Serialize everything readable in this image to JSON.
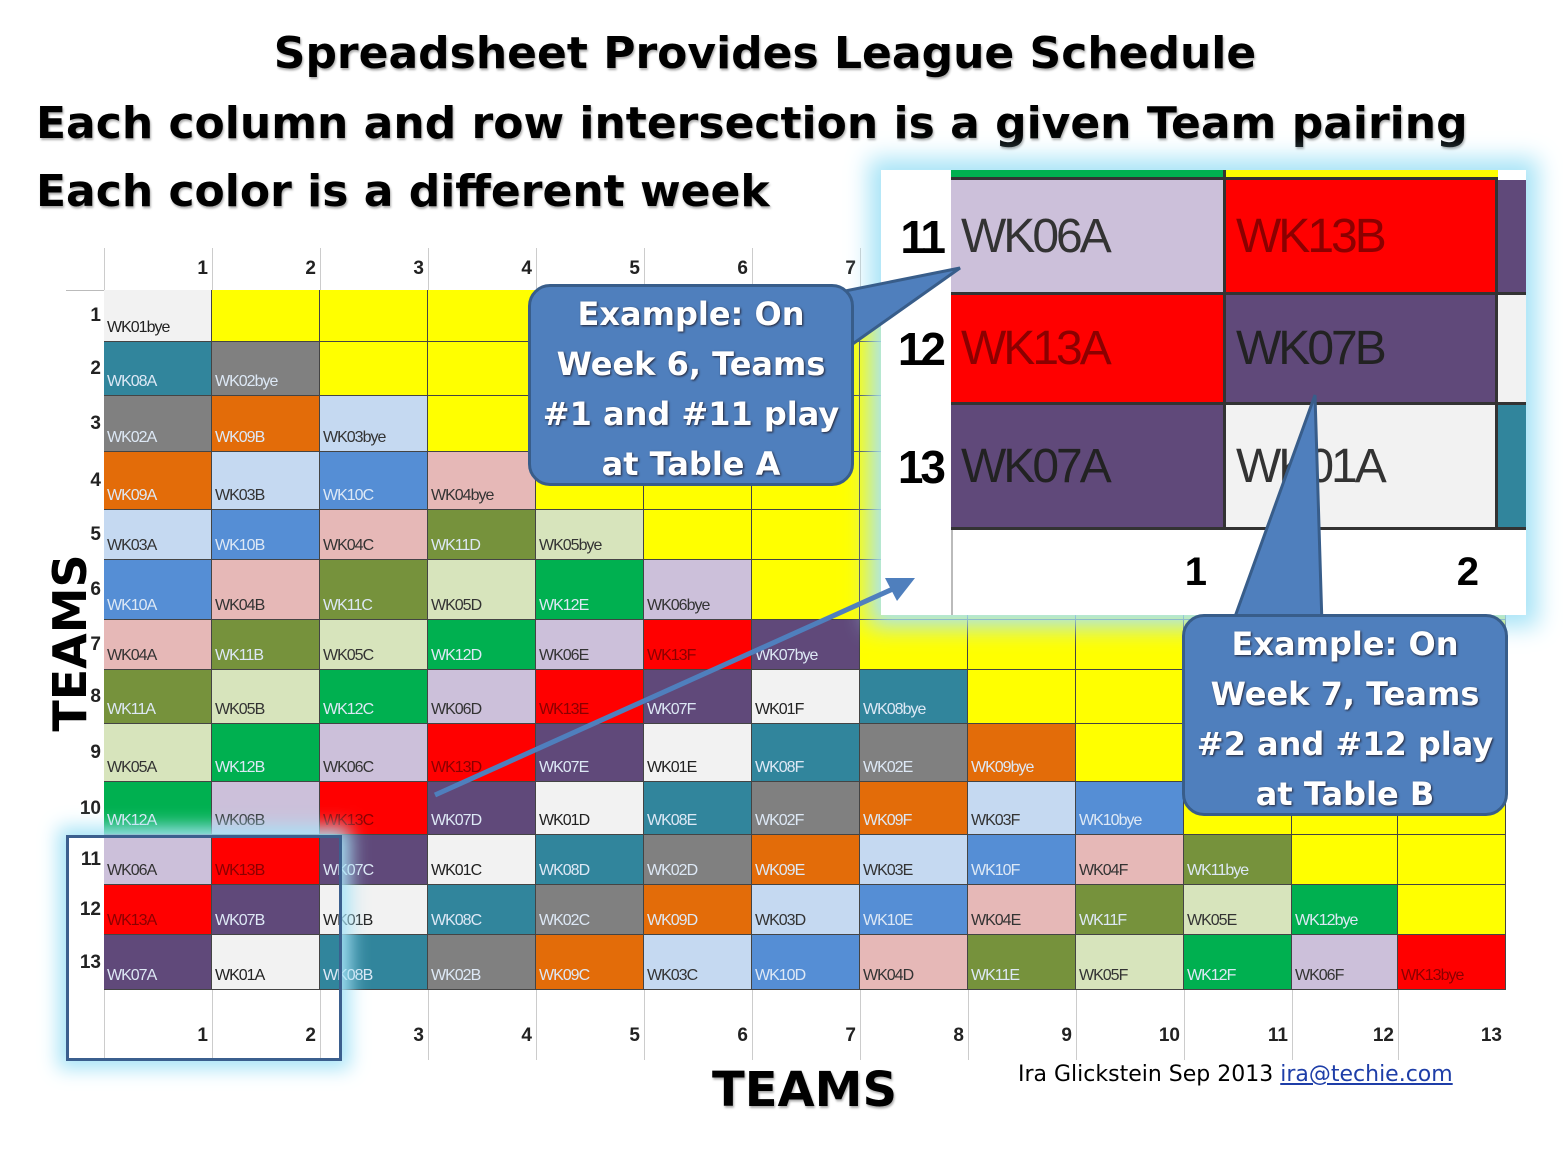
{
  "title": "Spreadsheet Provides League Schedule",
  "subtitle_line1": "Each column and row intersection is a given Team pairing",
  "subtitle_line2": "Each color is a different week",
  "axis_left_label": "TEAMS",
  "axis_bottom_label": "TEAMS",
  "credit_text": "Ira Glickstein Sep 2013",
  "credit_email": "ira@techie.com",
  "callout_a": "Example: On Week 6, Teams #1 and #11 play at Table A",
  "callout_b": "Example: On Week 7, Teams #2 and #12 play at Table B",
  "column_headers": [
    "1",
    "2",
    "3",
    "4",
    "5",
    "6",
    "7",
    "8",
    "9",
    "10",
    "11",
    "12",
    "13"
  ],
  "row_headers": [
    "1",
    "2",
    "3",
    "4",
    "5",
    "6",
    "7",
    "8",
    "9",
    "10",
    "11",
    "12",
    "13"
  ],
  "week_colors": {
    "WK01": "#f2f2f2",
    "WK02": "#808080",
    "WK03": "#c5d9f1",
    "WK04": "#e6b8b7",
    "WK05": "#d7e4bc",
    "WK06": "#ccc0da",
    "WK07": "#60497a",
    "WK08": "#31859c",
    "WK09": "#e36c09",
    "WK10": "#558ed5",
    "WK11": "#76923c",
    "WK12": "#00b050",
    "WK13": "#ff0000",
    "empty": "#ffff00"
  },
  "rows": [
    [
      "WK01bye"
    ],
    [
      "WK08A",
      "WK02bye"
    ],
    [
      "WK02A",
      "WK09B",
      "WK03bye"
    ],
    [
      "WK09A",
      "WK03B",
      "WK10C",
      "WK04bye"
    ],
    [
      "WK03A",
      "WK10B",
      "WK04C",
      "WK11D",
      "WK05bye"
    ],
    [
      "WK10A",
      "WK04B",
      "WK11C",
      "WK05D",
      "WK12E",
      "WK06bye"
    ],
    [
      "WK04A",
      "WK11B",
      "WK05C",
      "WK12D",
      "WK06E",
      "WK13F",
      "WK07bye"
    ],
    [
      "WK11A",
      "WK05B",
      "WK12C",
      "WK06D",
      "WK13E",
      "WK07F",
      "WK01F",
      "WK08bye"
    ],
    [
      "WK05A",
      "WK12B",
      "WK06C",
      "WK13D",
      "WK07E",
      "WK01E",
      "WK08F",
      "WK02E",
      "WK09bye"
    ],
    [
      "WK12A",
      "WK06B",
      "WK13C",
      "WK07D",
      "WK01D",
      "WK08E",
      "WK02F",
      "WK09F",
      "WK03F",
      "WK10bye"
    ],
    [
      "WK06A",
      "WK13B",
      "WK07C",
      "WK01C",
      "WK08D",
      "WK02D",
      "WK09E",
      "WK03E",
      "WK10F",
      "WK04F",
      "WK11bye"
    ],
    [
      "WK13A",
      "WK07B",
      "WK01B",
      "WK08C",
      "WK02C",
      "WK09D",
      "WK03D",
      "WK10E",
      "WK04E",
      "WK11F",
      "WK05E",
      "WK12bye"
    ],
    [
      "WK07A",
      "WK01A",
      "WK08B",
      "WK02B",
      "WK09C",
      "WK03C",
      "WK10D",
      "WK04D",
      "WK11E",
      "WK05F",
      "WK12F",
      "WK06F",
      "WK13bye"
    ]
  ],
  "zoom": {
    "row_labels": [
      "11",
      "12",
      "13"
    ],
    "cells": [
      [
        "WK06A",
        "WK13B"
      ],
      [
        "WK13A",
        "WK07B"
      ],
      [
        "WK07A",
        "WK01A"
      ]
    ],
    "col_labels": [
      "1",
      "2"
    ]
  }
}
